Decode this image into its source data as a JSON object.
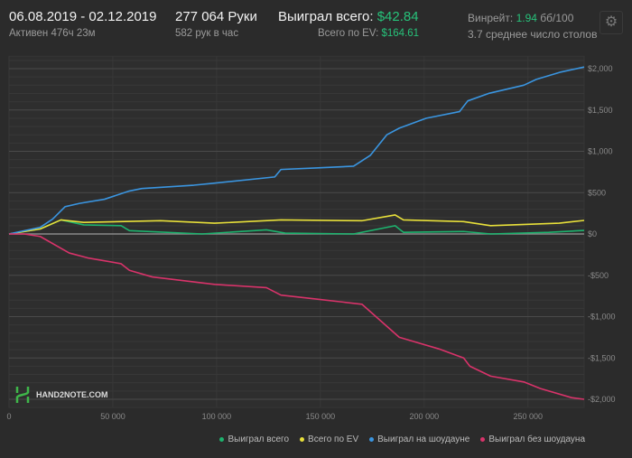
{
  "header": {
    "date_range": "06.08.2019 - 02.12.2019",
    "active": "Активен 476ч 23м",
    "hands": "277 064 Руки",
    "hands_per_hour": "582 рук в час",
    "won_label": "Выиграл всего:",
    "won_value": "$42.84",
    "ev_label": "Всего по EV:",
    "ev_value": "$164.61",
    "winrate_label": "Винрейт:",
    "winrate_value": "1.94",
    "winrate_unit": "бб/100",
    "tables": "3.7 среднее число столов"
  },
  "logo": "HAND2NOTE.COM",
  "chart_data": {
    "type": "line",
    "xlim": [
      0,
      277064
    ],
    "ylim": [
      -2100,
      2150
    ],
    "x_ticks": [
      {
        "v": 0,
        "l": "0"
      },
      {
        "v": 50000,
        "l": "50 000"
      },
      {
        "v": 100000,
        "l": "100 000"
      },
      {
        "v": 150000,
        "l": "150 000"
      },
      {
        "v": 200000,
        "l": "200 000"
      },
      {
        "v": 250000,
        "l": "250 000"
      }
    ],
    "y_ticks": [
      {
        "v": 2000,
        "l": "$2,000"
      },
      {
        "v": 1500,
        "l": "$1,500"
      },
      {
        "v": 1000,
        "l": "$1,000"
      },
      {
        "v": 500,
        "l": "$500"
      },
      {
        "v": 0,
        "l": "$0"
      },
      {
        "v": -500,
        "l": "-$500"
      },
      {
        "v": -1000,
        "l": "-$1,000"
      },
      {
        "v": -1500,
        "l": "-$1,500"
      },
      {
        "v": -2000,
        "l": "-$2,000"
      }
    ],
    "series": [
      {
        "name": "Выиграл всего",
        "color": "#1db36e",
        "points": [
          [
            0,
            0
          ],
          [
            15000,
            60
          ],
          [
            25000,
            170
          ],
          [
            36000,
            110
          ],
          [
            54000,
            100
          ],
          [
            58000,
            40
          ],
          [
            93000,
            0
          ],
          [
            124000,
            50
          ],
          [
            133000,
            10
          ],
          [
            166000,
            0
          ],
          [
            186000,
            100
          ],
          [
            190000,
            20
          ],
          [
            219000,
            30
          ],
          [
            232000,
            0
          ],
          [
            260000,
            20
          ],
          [
            277064,
            43
          ]
        ]
      },
      {
        "name": "Всего по EV",
        "color": "#e8e03a",
        "points": [
          [
            0,
            0
          ],
          [
            15000,
            60
          ],
          [
            25000,
            170
          ],
          [
            36000,
            140
          ],
          [
            73000,
            160
          ],
          [
            99000,
            130
          ],
          [
            131000,
            170
          ],
          [
            170000,
            160
          ],
          [
            186000,
            230
          ],
          [
            190000,
            170
          ],
          [
            219000,
            150
          ],
          [
            232000,
            100
          ],
          [
            265000,
            130
          ],
          [
            277064,
            164
          ]
        ]
      },
      {
        "name": "Выиграл на шоудауне",
        "color": "#3a95e0",
        "points": [
          [
            0,
            0
          ],
          [
            15000,
            80
          ],
          [
            21000,
            180
          ],
          [
            27000,
            330
          ],
          [
            34000,
            370
          ],
          [
            46000,
            420
          ],
          [
            58000,
            520
          ],
          [
            64000,
            550
          ],
          [
            89000,
            590
          ],
          [
            97000,
            610
          ],
          [
            128000,
            690
          ],
          [
            131000,
            780
          ],
          [
            149000,
            800
          ],
          [
            166000,
            820
          ],
          [
            174000,
            950
          ],
          [
            182000,
            1200
          ],
          [
            188000,
            1280
          ],
          [
            201000,
            1400
          ],
          [
            217000,
            1480
          ],
          [
            221000,
            1610
          ],
          [
            231000,
            1700
          ],
          [
            248000,
            1800
          ],
          [
            254000,
            1870
          ],
          [
            266000,
            1960
          ],
          [
            277064,
            2020
          ]
        ]
      },
      {
        "name": "Выиграл без шоудауна",
        "color": "#d8336a",
        "points": [
          [
            0,
            0
          ],
          [
            7300,
            0
          ],
          [
            15000,
            -30
          ],
          [
            29000,
            -230
          ],
          [
            38000,
            -290
          ],
          [
            54000,
            -360
          ],
          [
            58000,
            -440
          ],
          [
            69000,
            -520
          ],
          [
            99000,
            -610
          ],
          [
            124000,
            -650
          ],
          [
            131000,
            -740
          ],
          [
            149000,
            -790
          ],
          [
            170000,
            -850
          ],
          [
            188000,
            -1250
          ],
          [
            207000,
            -1390
          ],
          [
            219000,
            -1500
          ],
          [
            222000,
            -1600
          ],
          [
            232000,
            -1720
          ],
          [
            248000,
            -1790
          ],
          [
            256000,
            -1870
          ],
          [
            271000,
            -1980
          ],
          [
            277064,
            -2000
          ]
        ]
      }
    ]
  }
}
